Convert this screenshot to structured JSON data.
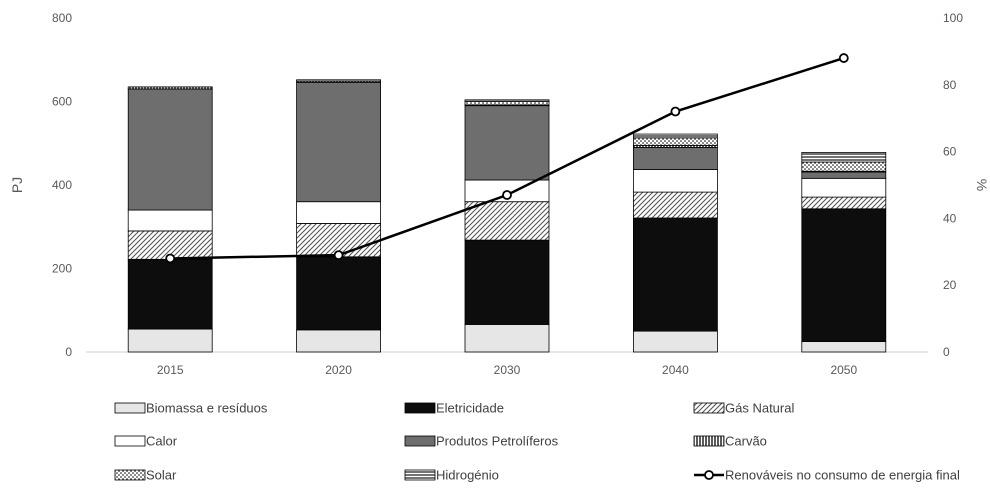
{
  "chart_data": {
    "type": "bar",
    "stacked": true,
    "categories": [
      "2015",
      "2020",
      "2030",
      "2040",
      "2050"
    ],
    "title": "",
    "ylabel": "PJ",
    "y2label": "%",
    "ylim": [
      0,
      800
    ],
    "y2lim": [
      0,
      100
    ],
    "yticks": [
      "0",
      "200",
      "400",
      "600",
      "800"
    ],
    "y2ticks": [
      "0",
      "20",
      "40",
      "60",
      "80",
      "100"
    ],
    "grid": false,
    "legend_position": "bottom",
    "series": [
      {
        "name": "Biomassa e resíduos",
        "pattern": "light-gray",
        "values": [
          55,
          53,
          66,
          50,
          25
        ]
      },
      {
        "name": "Eletricidade",
        "pattern": "black",
        "values": [
          167,
          175,
          202,
          271,
          318
        ]
      },
      {
        "name": "Gás Natural",
        "pattern": "diagonal-hatch",
        "values": [
          68,
          80,
          92,
          62,
          28
        ]
      },
      {
        "name": "Calor",
        "pattern": "white",
        "values": [
          50,
          52,
          52,
          54,
          45
        ]
      },
      {
        "name": "Produtos Petrolíferos",
        "pattern": "dark-gray",
        "values": [
          290,
          286,
          178,
          53,
          15
        ]
      },
      {
        "name": "Carvão",
        "pattern": "vertical-lines",
        "values": [
          5,
          3,
          2,
          5,
          2
        ]
      },
      {
        "name": "Solar",
        "pattern": "dots",
        "values": [
          0,
          0,
          8,
          18,
          22
        ]
      },
      {
        "name": "Hidrogénio",
        "pattern": "horizontal-lines",
        "values": [
          0,
          3,
          4,
          9,
          23
        ]
      }
    ],
    "line_series": {
      "name": "Renováveis no consumo de energia final",
      "axis": "right",
      "values": [
        28,
        29,
        47,
        72,
        88
      ]
    },
    "legend": [
      "Biomassa e resíduos",
      "Eletricidade",
      "Gás Natural",
      "Calor",
      "Produtos Petrolíferos",
      "Carvão",
      "Solar",
      "Hidrogénio",
      "Renováveis no consumo de energia final"
    ]
  }
}
